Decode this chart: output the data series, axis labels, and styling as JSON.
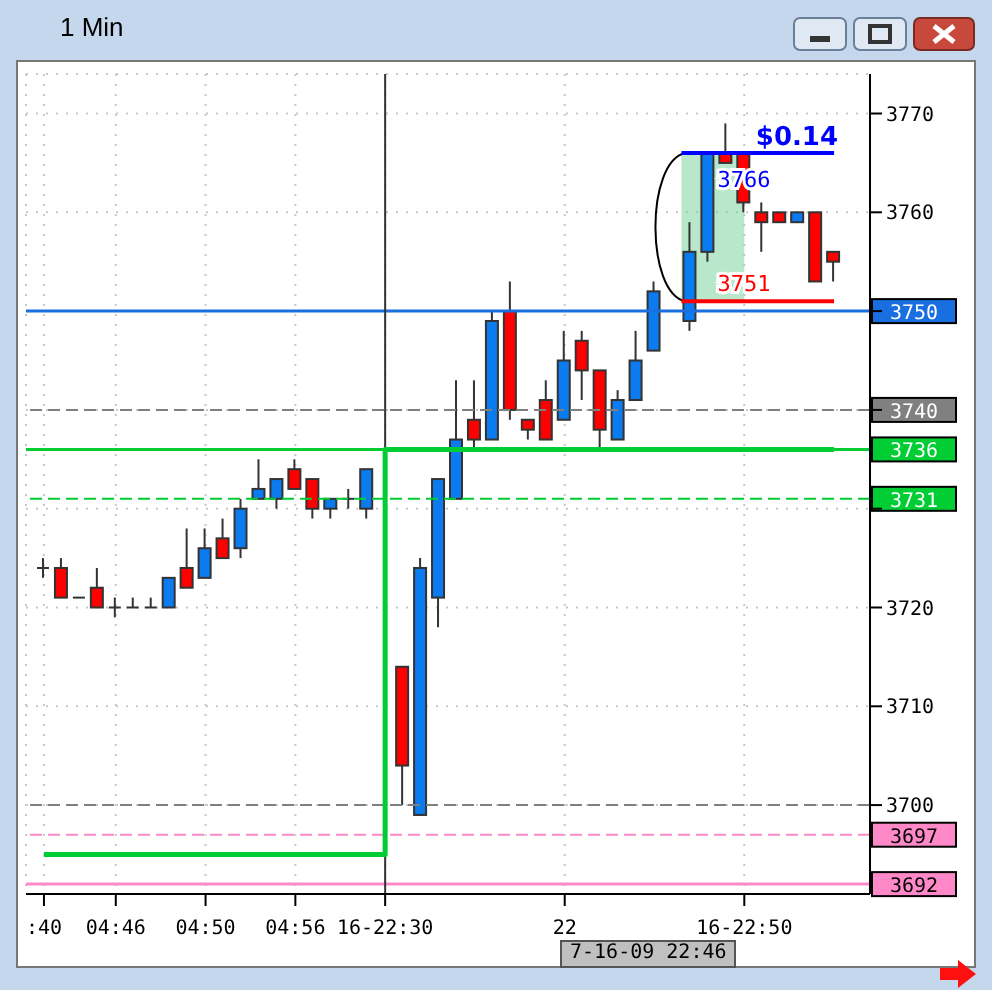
{
  "chart_data": {
    "type": "candlestick",
    "title": "1 Min",
    "categories": [
      ":40",
      null,
      null,
      null,
      "04:46",
      null,
      null,
      null,
      null,
      "04:50",
      null,
      null,
      null,
      null,
      "04:56",
      null,
      null,
      null,
      null,
      "16-22:30",
      null,
      null,
      null,
      null,
      null,
      null,
      null,
      null,
      null,
      "22",
      null,
      null,
      null,
      null,
      null,
      null,
      null,
      null,
      null,
      "16-22:50",
      null,
      null,
      null,
      null,
      null
    ],
    "series": [
      {
        "ohlc": [
          [
            3724,
            3725,
            3723,
            3724
          ],
          [
            3724,
            3725,
            3721,
            3721
          ],
          [
            3721,
            3721,
            3721,
            3721
          ],
          [
            3722,
            3724,
            3720,
            3720
          ],
          [
            3720,
            3721,
            3719,
            3720
          ],
          [
            3720,
            3721,
            3720,
            3720
          ],
          [
            3720,
            3721,
            3720,
            3720
          ],
          [
            3720,
            3723,
            3720,
            3723
          ],
          [
            3724,
            3728,
            3722,
            3722
          ],
          [
            3723,
            3728,
            3723,
            3726
          ],
          [
            3727,
            3729,
            3725,
            3725
          ],
          [
            3726,
            3731,
            3725,
            3730
          ],
          [
            3731,
            3735,
            3731,
            3732
          ],
          [
            3731,
            3733,
            3730,
            3733
          ],
          [
            3734,
            3735,
            3732,
            3732
          ],
          [
            3733,
            3733,
            3729,
            3730
          ],
          [
            3730,
            3731,
            3729,
            3731
          ],
          [
            3731,
            3732,
            3730,
            3731
          ],
          [
            3730,
            3734,
            3729,
            3734
          ],
          null,
          [
            3714,
            3714,
            3700,
            3704
          ],
          [
            3699,
            3725,
            3699,
            3724
          ],
          [
            3721,
            3733,
            3718,
            3733
          ],
          [
            3731,
            3743,
            3731,
            3737
          ],
          [
            3739,
            3743,
            3736,
            3737
          ],
          [
            3737,
            3750,
            3737,
            3749
          ],
          [
            3750,
            3753,
            3739,
            3740
          ],
          [
            3739,
            3739,
            3737,
            3738
          ],
          [
            3741,
            3743,
            3737,
            3737
          ],
          [
            3739,
            3748,
            3739,
            3745
          ],
          [
            3747,
            3748,
            3741,
            3744
          ],
          [
            3744,
            3744,
            3736,
            3738
          ],
          [
            3737,
            3742,
            3737,
            3741
          ],
          [
            3741,
            3748,
            3741,
            3745
          ],
          [
            3746,
            3753,
            3746,
            3752
          ],
          null,
          [
            3749,
            3759,
            3748,
            3756
          ],
          [
            3756,
            3766,
            3755,
            3766
          ],
          [
            3766,
            3769,
            3765,
            3765
          ],
          [
            3766,
            3766,
            3760,
            3761
          ],
          [
            3760,
            3761,
            3756,
            3759
          ],
          [
            3760,
            3760,
            3759,
            3759
          ],
          [
            3759,
            3760,
            3759,
            3760
          ],
          [
            3760,
            3760,
            3753,
            3753
          ],
          [
            3756,
            3756,
            3753,
            3755
          ]
        ],
        "colors": [
          "#333333",
          "#ff0000",
          "#333333",
          "#ff0000",
          "#333333",
          "#333333",
          "#333333",
          "#0a7cf0",
          "#ff0000",
          "#0a7cf0",
          "#ff0000",
          "#0a7cf0",
          "#0a7cf0",
          "#0a7cf0",
          "#ff0000",
          "#ff0000",
          "#0a7cf0",
          "#333333",
          "#0a7cf0",
          null,
          "#ff0000",
          "#0a7cf0",
          "#0a7cf0",
          "#0a7cf0",
          "#ff0000",
          "#0a7cf0",
          "#ff0000",
          "#ff0000",
          "#ff0000",
          "#0a7cf0",
          "#ff0000",
          "#ff0000",
          "#0a7cf0",
          "#0a7cf0",
          "#0a7cf0",
          null,
          "#0a7cf0",
          "#0a7cf0",
          "#ff0000",
          "#ff0000",
          "#ff0000",
          "#ff0000",
          "#0a7cf0",
          "#ff0000",
          "#ff0000"
        ]
      },
      {
        "type": "step",
        "color": "#00cc33",
        "values": [
          3695,
          3695,
          3695,
          3695,
          3695,
          3695,
          3695,
          3695,
          3695,
          3695,
          3695,
          3695,
          3695,
          3695,
          3695,
          3695,
          3695,
          3695,
          3695,
          3736,
          3736,
          3736,
          3736,
          3736,
          3736,
          3736,
          3736,
          3736,
          3736,
          3736,
          3736,
          3736,
          3736,
          3736,
          3736,
          3736,
          3736,
          3736,
          3736,
          3736,
          3736,
          3736,
          3736,
          3736,
          3736
        ]
      }
    ],
    "ylim": [
      3691,
      3774
    ],
    "yticks": [
      3700,
      3710,
      3720,
      {
        "value": 3730,
        "label": null
      },
      {
        "value": 3740,
        "label": null
      },
      {
        "value": 3750,
        "label": null
      },
      3760,
      3770
    ],
    "grid": true,
    "ref_lines": [
      {
        "axis": "y",
        "value": 3750,
        "label": "3750",
        "color": "#1a6fe0",
        "line_style": "solid"
      },
      {
        "axis": "y",
        "value": 3740,
        "label": "3740",
        "color": "#808080",
        "line_style": "dashed"
      },
      {
        "axis": "y",
        "value": 3736,
        "label": "3736",
        "color": "#00cc33",
        "line_style": "solid"
      },
      {
        "axis": "y",
        "value": 3731,
        "label": "3731",
        "color": "#00cc33",
        "line_style": "dashed"
      },
      {
        "axis": "y",
        "value": 3700,
        "color": "#808080",
        "line_style": "dashed"
      },
      {
        "axis": "y",
        "value": 3697,
        "label": "3697",
        "color": "#ff88c8",
        "line_style": "dashed"
      },
      {
        "axis": "y",
        "value": 3692,
        "label": "3692",
        "color": "#ff88c8",
        "line_style": "solid"
      },
      {
        "axis": "y",
        "value": 3766,
        "label": "3766",
        "color": "#0000ff"
      },
      {
        "axis": "y",
        "value": 3751,
        "label": "3751",
        "color": "#ff0000"
      },
      {
        "axis": "x",
        "value": "16-22:30",
        "color": "#333333",
        "line_style": "solid"
      }
    ],
    "annotations": [
      "$0.14",
      "7-16-09 22:46"
    ]
  }
}
